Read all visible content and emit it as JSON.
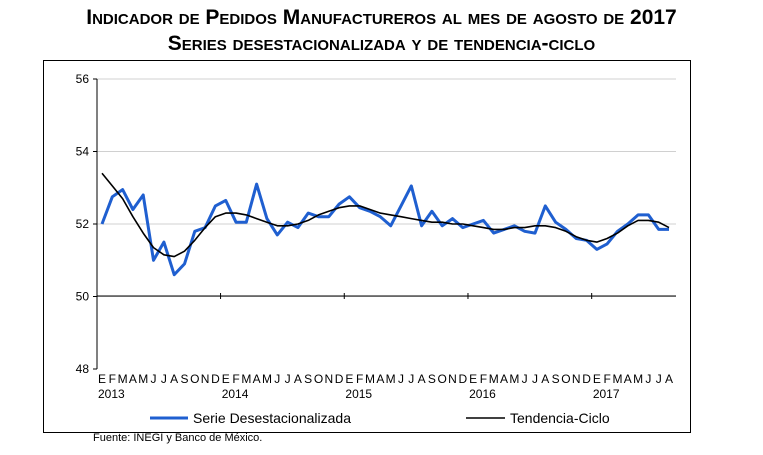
{
  "chart_data": {
    "type": "line",
    "title": "Indicador de Pedidos Manufactureros al mes de agosto de 2017",
    "subtitle": "Series desestacionalizada y de tendencia-ciclo",
    "xlabel": "",
    "ylabel": "",
    "ylim": [
      48,
      56
    ],
    "yticks": [
      "48",
      "50",
      "52",
      "54",
      "56"
    ],
    "grid": true,
    "month_labels": [
      "E",
      "F",
      "M",
      "A",
      "M",
      "J",
      "J",
      "A",
      "S",
      "O",
      "N",
      "D",
      "E",
      "F",
      "M",
      "A",
      "M",
      "J",
      "J",
      "A",
      "S",
      "O",
      "N",
      "D",
      "E",
      "F",
      "M",
      "A",
      "M",
      "J",
      "J",
      "A",
      "S",
      "O",
      "N",
      "D",
      "E",
      "F",
      "M",
      "A",
      "M",
      "J",
      "J",
      "A",
      "S",
      "O",
      "N",
      "D",
      "E",
      "F",
      "M",
      "A",
      "M",
      "J",
      "J",
      "A"
    ],
    "year_labels": [
      "2013",
      "2014",
      "2015",
      "2016",
      "2017"
    ],
    "legend_position": "bottom",
    "series": [
      {
        "name": "Serie Desestacionalizada",
        "color": "#1f5fd0",
        "values": [
          52.0,
          52.75,
          52.95,
          52.4,
          52.8,
          51.0,
          51.5,
          50.6,
          50.9,
          51.8,
          51.9,
          52.5,
          52.65,
          52.05,
          52.05,
          53.1,
          52.15,
          51.7,
          52.05,
          51.9,
          52.3,
          52.2,
          52.2,
          52.55,
          52.75,
          52.45,
          52.35,
          52.2,
          51.95,
          52.5,
          53.05,
          51.95,
          52.35,
          51.95,
          52.15,
          51.9,
          52.0,
          52.1,
          51.75,
          51.85,
          51.95,
          51.8,
          51.75,
          52.5,
          52.05,
          51.85,
          51.6,
          51.55,
          51.3,
          51.45,
          51.8,
          52.0,
          52.25,
          52.25,
          51.85,
          51.85
        ]
      },
      {
        "name": "Tendencia-Ciclo",
        "color": "#000000",
        "values": [
          53.4,
          53.05,
          52.7,
          52.2,
          51.75,
          51.35,
          51.15,
          51.1,
          51.25,
          51.55,
          51.9,
          52.2,
          52.3,
          52.3,
          52.25,
          52.15,
          52.05,
          51.95,
          51.95,
          52.0,
          52.1,
          52.25,
          52.35,
          52.45,
          52.5,
          52.5,
          52.4,
          52.3,
          52.25,
          52.2,
          52.15,
          52.1,
          52.05,
          52.05,
          52.0,
          52.0,
          51.95,
          51.9,
          51.85,
          51.85,
          51.9,
          51.9,
          51.95,
          51.95,
          51.9,
          51.8,
          51.65,
          51.55,
          51.5,
          51.6,
          51.75,
          51.95,
          52.1,
          52.1,
          52.05,
          51.9
        ]
      }
    ]
  },
  "footer": {
    "source": "Fuente: INEGI y Banco de México."
  }
}
